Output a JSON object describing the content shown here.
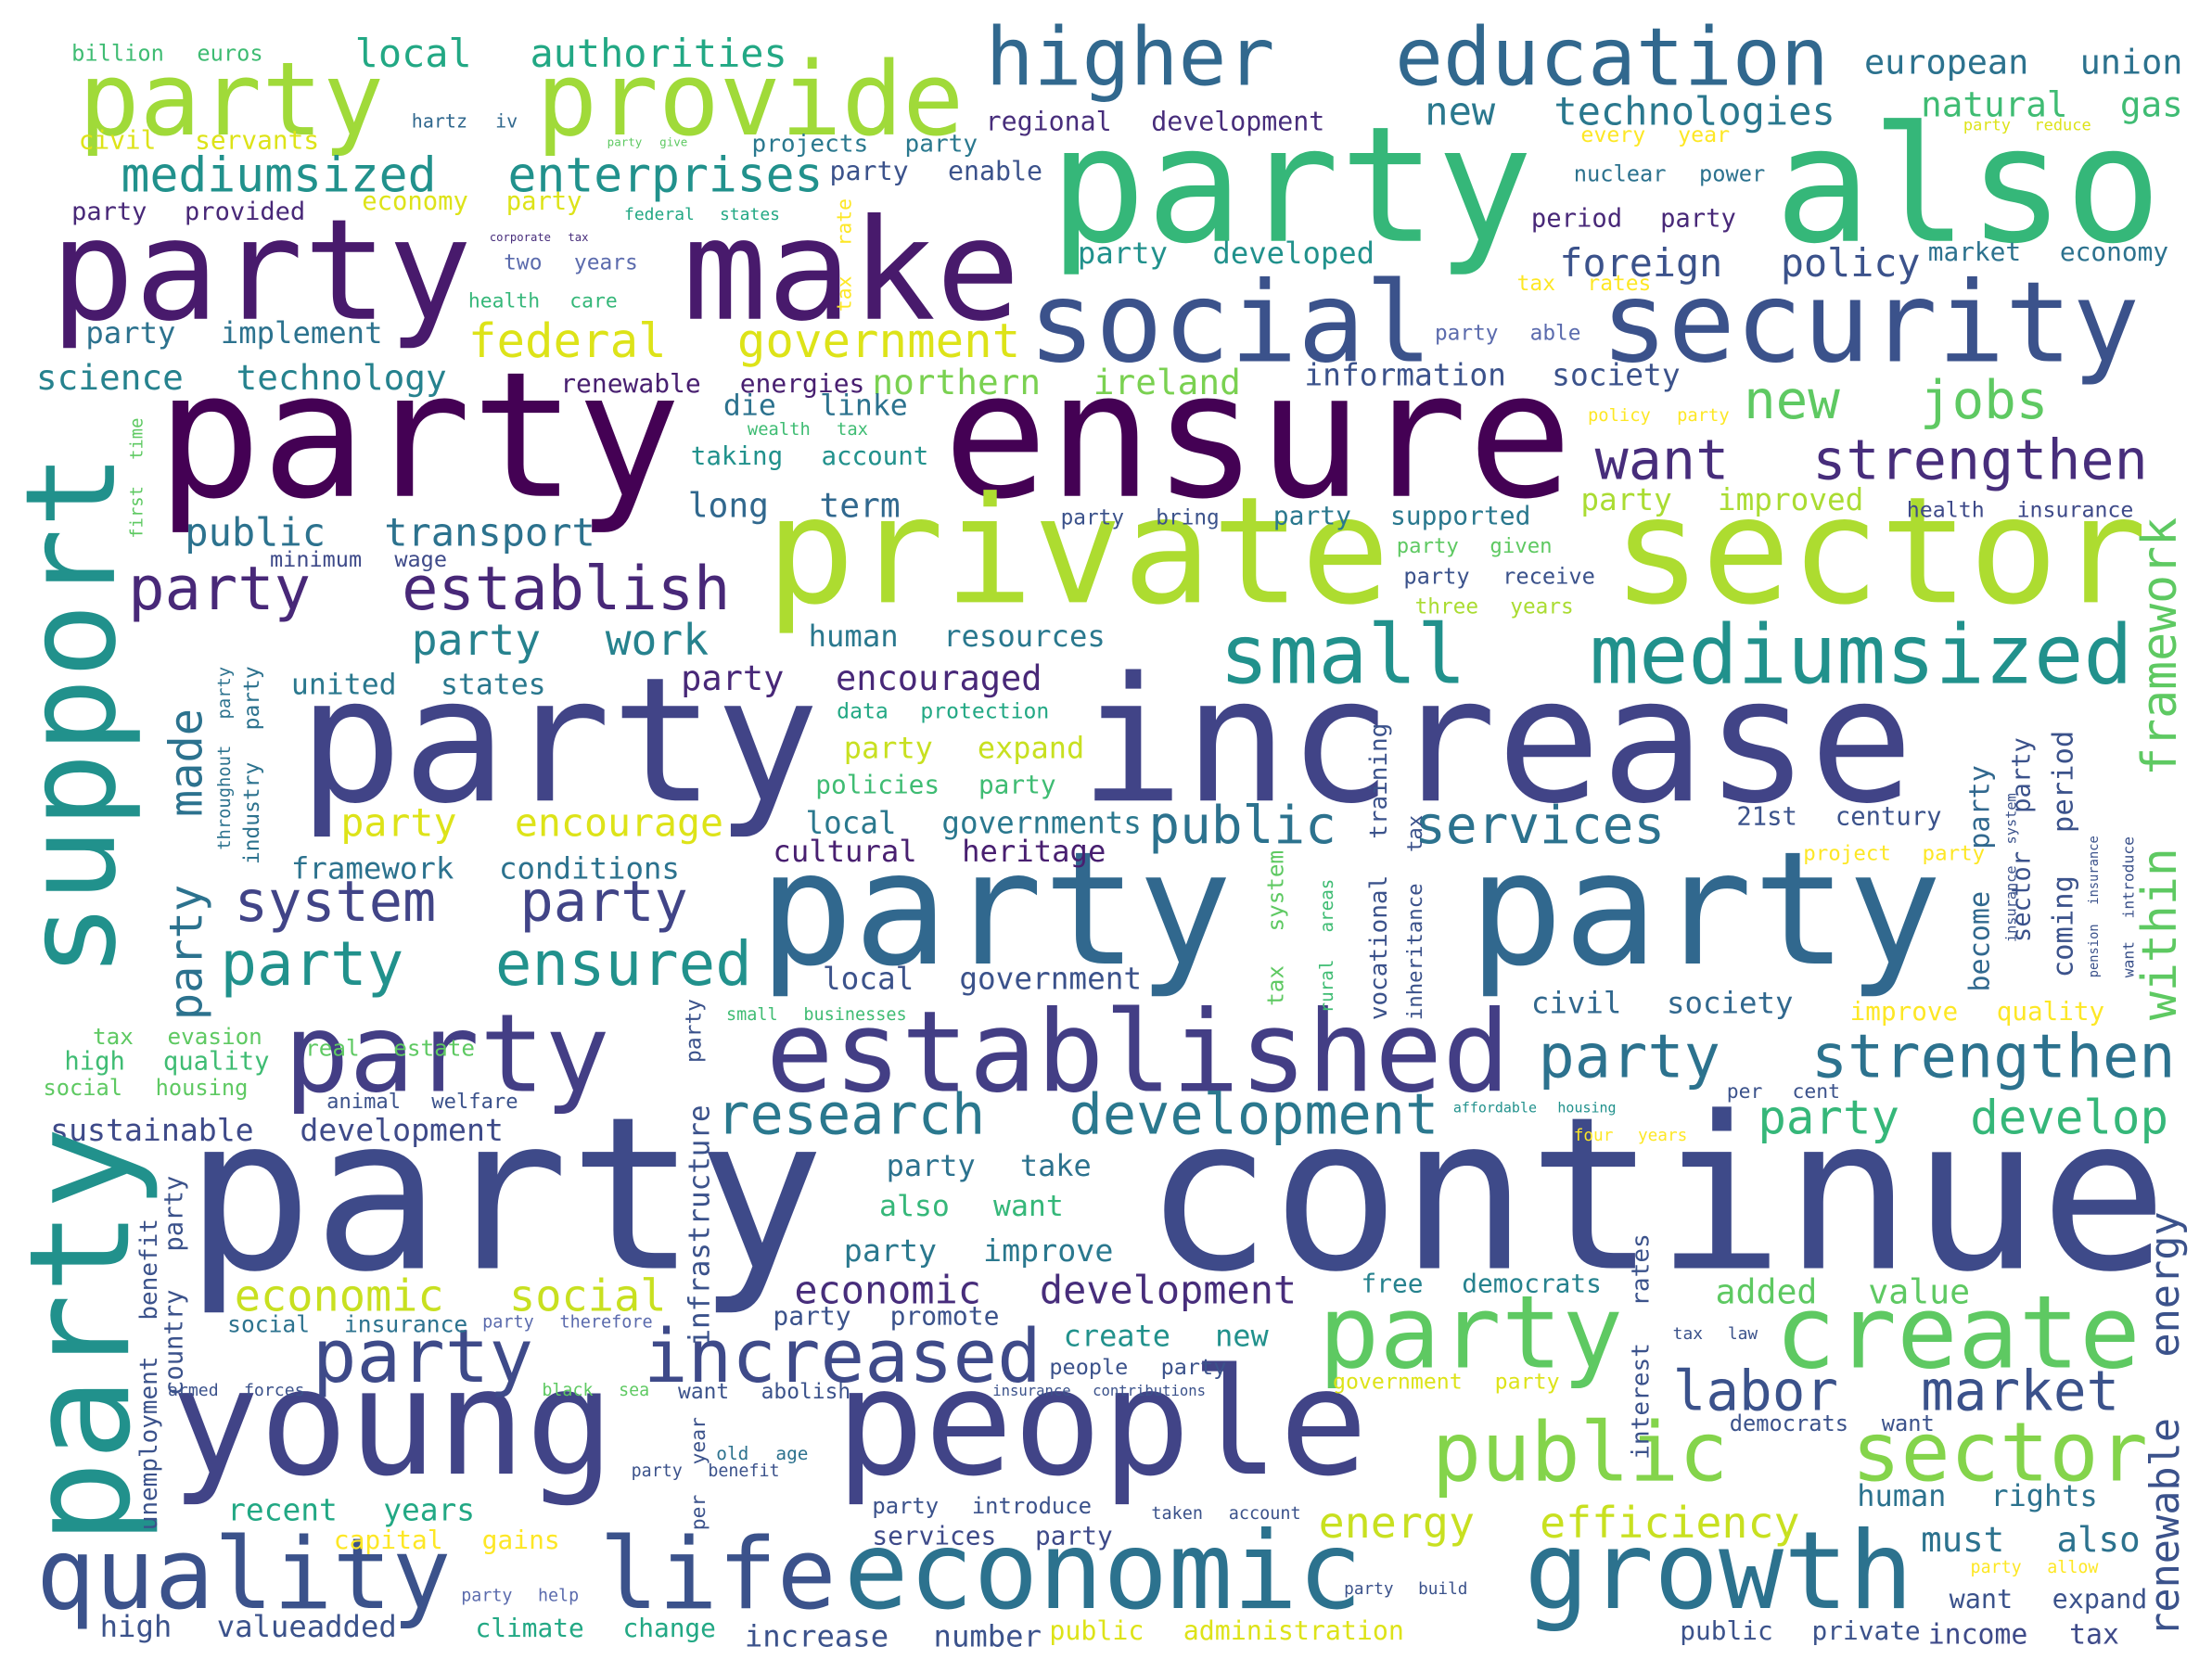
{
  "words": [
    "party ensure",
    "party continue",
    "party increase",
    "party party",
    "private sector",
    "party also",
    "young people",
    "party make",
    "party",
    "established",
    "quality life",
    "economic growth",
    "social security",
    "party provide",
    "higher education",
    "small mediumsized",
    "party create",
    "public sector",
    "party increased",
    "research development",
    "party strengthen",
    "party establish",
    "party ensured",
    "system party",
    "public services",
    "want strengthen",
    "new jobs",
    "mediumsized enterprises",
    "federal government",
    "foreign policy",
    "local authorities",
    "european union",
    "natural gas",
    "new technologies",
    "northern ireland",
    "science technology",
    "public transport",
    "long term",
    "party work",
    "party encouraged",
    "united states",
    "party encourage",
    "party expand",
    "policies party",
    "local governments",
    "framework conditions",
    "cultural heritage",
    "local government",
    "civil society",
    "party develop",
    "sustainable development",
    "party take",
    "also want",
    "party improve",
    "economic social",
    "economic development",
    "added value",
    "free democrats",
    "create new",
    "labor market",
    "energy efficiency",
    "must also",
    "human rights",
    "recent years",
    "services party",
    "high valueadded",
    "climate change",
    "increase number",
    "public administration",
    "public private",
    "income tax",
    "want expand",
    "party build",
    "party help",
    "capital gains",
    "billion euros",
    "hartz iv",
    "civil servants",
    "party provided",
    "economy party",
    "party give",
    "projects party",
    "regional development",
    "party enable",
    "federal states",
    "corporate tax",
    "two years",
    "health care",
    "party implement",
    "party developed",
    "period party",
    "nuclear power",
    "every year",
    "party reduce",
    "market economy",
    "tax rates",
    "party able",
    "renewable energies",
    "information society",
    "die linke",
    "wealth tax",
    "taking account",
    "policy party",
    "party improved",
    "health insurance",
    "party bring",
    "party supported",
    "party given",
    "party receive",
    "three years",
    "minimum wage",
    "human resources",
    "data protection",
    "21st century",
    "project party",
    "improve quality",
    "per cent",
    "four years",
    "affordable housing",
    "small businesses",
    "real estate",
    "tax evasion",
    "high quality",
    "social housing",
    "animal welfare",
    "social insurance",
    "party therefore",
    "party promote",
    "armed forces",
    "black sea",
    "want abolish",
    "insurance contributions",
    "people party",
    "government party",
    "tax law",
    "democrats want",
    "old age",
    "party benefit",
    "party introduce",
    "taken account",
    "party allow",
    "support",
    "party",
    "party made",
    "within framework",
    "renewable energy",
    "become party",
    "sector party",
    "coming period",
    "insurance system",
    "pension insurance",
    "want introduce",
    "infrastructure",
    "vocational training",
    "inheritance tax",
    "rural areas",
    "tax system",
    "industry party",
    "throughout party",
    "first time",
    "per year",
    "party",
    "country party",
    "unemployment benefit",
    "interest rates",
    "tax rate"
  ]
}
